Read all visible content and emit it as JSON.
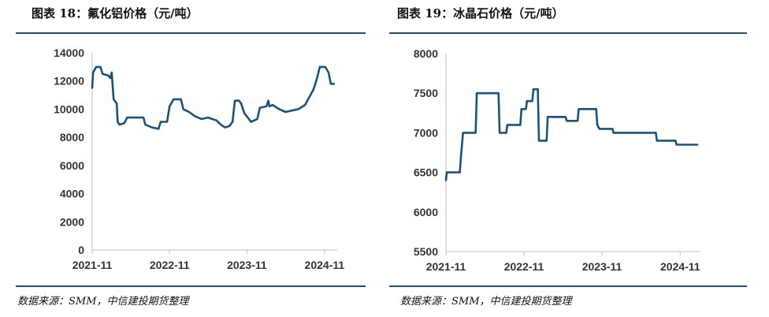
{
  "charts": [
    {
      "title": "图表 18：氟化铝价格（元/吨）",
      "source": "数据来源：SMM，中信建投期货整理"
    },
    {
      "title": "图表 19：冰晶石价格（元/吨）",
      "source": "数据来源：SMM，中信建投期货整理"
    }
  ],
  "colors": {
    "series": "#1b5279",
    "rule": "#1f4e79"
  },
  "chart_data": [
    {
      "type": "line",
      "title": "图表 18：氟化铝价格（元/吨）",
      "xlabel": "",
      "ylabel": "",
      "ylim": [
        0,
        14000
      ],
      "yticks": [
        0,
        2000,
        4000,
        6000,
        8000,
        10000,
        12000,
        14000
      ],
      "xlim": [
        "2021-11-01",
        "2024-12-31"
      ],
      "xticks": [
        "2021-11",
        "2022-11",
        "2023-11",
        "2024-11"
      ],
      "grid": false,
      "series": [
        {
          "values": [
            [
              "2021-11-01",
              11500
            ],
            [
              "2021-11-05",
              12600
            ],
            [
              "2021-11-20",
              13000
            ],
            [
              "2021-12-10",
              13000
            ],
            [
              "2021-12-20",
              12500
            ],
            [
              "2022-01-15",
              12400
            ],
            [
              "2022-01-25",
              12200
            ],
            [
              "2022-02-01",
              12600
            ],
            [
              "2022-02-10",
              10700
            ],
            [
              "2022-02-25",
              10400
            ],
            [
              "2022-03-01",
              9100
            ],
            [
              "2022-03-10",
              8900
            ],
            [
              "2022-04-01",
              9000
            ],
            [
              "2022-04-15",
              9400
            ],
            [
              "2022-07-01",
              9400
            ],
            [
              "2022-07-10",
              8900
            ],
            [
              "2022-08-10",
              8700
            ],
            [
              "2022-09-10",
              8600
            ],
            [
              "2022-09-20",
              9100
            ],
            [
              "2022-10-20",
              9100
            ],
            [
              "2022-11-01",
              10200
            ],
            [
              "2022-11-20",
              10700
            ],
            [
              "2022-12-25",
              10700
            ],
            [
              "2023-01-05",
              10000
            ],
            [
              "2023-02-01",
              9800
            ],
            [
              "2023-03-01",
              9500
            ],
            [
              "2023-04-01",
              9300
            ],
            [
              "2023-05-01",
              9400
            ],
            [
              "2023-06-10",
              9200
            ],
            [
              "2023-07-01",
              8900
            ],
            [
              "2023-07-20",
              8700
            ],
            [
              "2023-08-10",
              8800
            ],
            [
              "2023-08-25",
              9100
            ],
            [
              "2023-09-05",
              10600
            ],
            [
              "2023-09-25",
              10600
            ],
            [
              "2023-10-05",
              10400
            ],
            [
              "2023-10-20",
              9700
            ],
            [
              "2023-11-05",
              9400
            ],
            [
              "2023-11-20",
              9100
            ],
            [
              "2023-12-20",
              9300
            ],
            [
              "2024-01-01",
              10100
            ],
            [
              "2024-02-01",
              10200
            ],
            [
              "2024-02-10",
              10600
            ],
            [
              "2024-02-15",
              10200
            ],
            [
              "2024-03-01",
              10300
            ],
            [
              "2024-04-01",
              10000
            ],
            [
              "2024-05-01",
              9800
            ],
            [
              "2024-07-01",
              10000
            ],
            [
              "2024-08-01",
              10300
            ],
            [
              "2024-09-10",
              11400
            ],
            [
              "2024-09-25",
              12100
            ],
            [
              "2024-10-10",
              13000
            ],
            [
              "2024-11-05",
              13000
            ],
            [
              "2024-11-20",
              12600
            ],
            [
              "2024-12-01",
              11800
            ],
            [
              "2024-12-15",
              11800
            ]
          ]
        }
      ]
    },
    {
      "type": "line",
      "title": "图表 19：冰晶石价格（元/吨）",
      "xlabel": "",
      "ylabel": "",
      "ylim": [
        5500,
        8000
      ],
      "yticks": [
        5500,
        6000,
        6500,
        7000,
        7500,
        8000
      ],
      "xlim": [
        "2021-11-01",
        "2025-01-31"
      ],
      "xticks": [
        "2021-11",
        "2022-11",
        "2023-11",
        "2024-11"
      ],
      "grid": false,
      "series": [
        {
          "values": [
            [
              "2021-11-01",
              6400
            ],
            [
              "2021-11-05",
              6500
            ],
            [
              "2022-01-05",
              6500
            ],
            [
              "2022-01-10",
              6700
            ],
            [
              "2022-01-20",
              7000
            ],
            [
              "2022-03-20",
              7000
            ],
            [
              "2022-03-25",
              7500
            ],
            [
              "2022-07-05",
              7500
            ],
            [
              "2022-07-10",
              7000
            ],
            [
              "2022-08-10",
              7000
            ],
            [
              "2022-08-15",
              7100
            ],
            [
              "2022-10-15",
              7100
            ],
            [
              "2022-10-20",
              7300
            ],
            [
              "2022-11-10",
              7300
            ],
            [
              "2022-11-15",
              7400
            ],
            [
              "2022-12-10",
              7400
            ],
            [
              "2022-12-15",
              7550
            ],
            [
              "2023-01-05",
              7550
            ],
            [
              "2023-01-10",
              6900
            ],
            [
              "2023-02-15",
              6900
            ],
            [
              "2023-02-20",
              7200
            ],
            [
              "2023-05-15",
              7200
            ],
            [
              "2023-05-20",
              7150
            ],
            [
              "2023-07-10",
              7150
            ],
            [
              "2023-07-15",
              7300
            ],
            [
              "2023-10-05",
              7300
            ],
            [
              "2023-10-10",
              7100
            ],
            [
              "2023-10-20",
              7050
            ],
            [
              "2023-12-20",
              7050
            ],
            [
              "2023-12-25",
              7000
            ],
            [
              "2024-07-10",
              7000
            ],
            [
              "2024-07-15",
              6900
            ],
            [
              "2024-10-10",
              6900
            ],
            [
              "2024-10-15",
              6850
            ],
            [
              "2025-01-20",
              6850
            ]
          ]
        }
      ]
    }
  ]
}
